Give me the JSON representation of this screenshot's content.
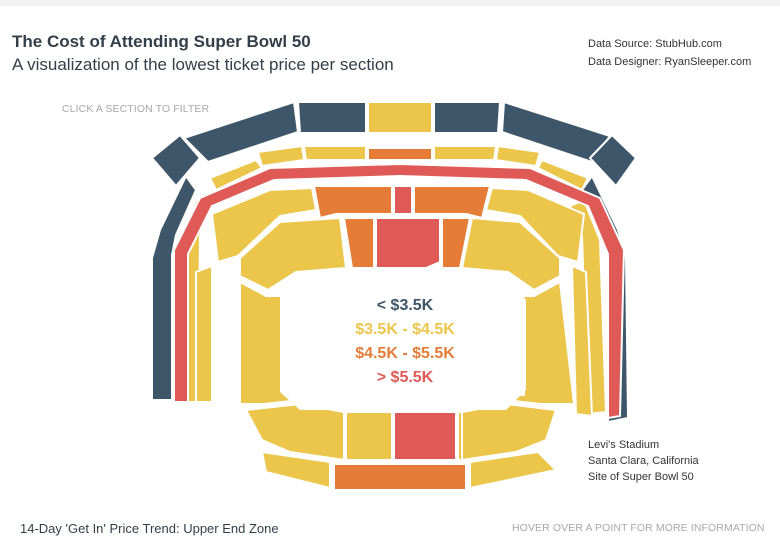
{
  "header": {
    "title": "The Cost of Attending Super Bowl 50",
    "subtitle": "A visualization of the lowest ticket price per section",
    "source": "Data Source: StubHub.com",
    "designer": "Data Designer: RyanSleeper.com"
  },
  "hints": {
    "filter": "CLICK A SECTION TO FILTER",
    "hover": "HOVER OVER A POINT FOR MORE INFORMATION"
  },
  "trend_title": "14-Day 'Get In' Price Trend: Upper End Zone",
  "venue": {
    "line1": "Levi's Stadium",
    "line2": "Santa Clara, California",
    "line3": "Site of Super Bowl 50"
  },
  "colors": {
    "tier1": "#3e5669",
    "tier2": "#ecc54b",
    "tier3": "#e57d38",
    "tier4": "#df5a56"
  },
  "chart_data": {
    "type": "heatmap",
    "legend": [
      {
        "label": "< $3.5K",
        "tier": "tier1"
      },
      {
        "label": "$3.5K - $4.5K",
        "tier": "tier2"
      },
      {
        "label": "$4.5K - $5.5K",
        "tier": "tier3"
      },
      {
        "label": "> $5.5K",
        "tier": "tier4"
      }
    ],
    "sections": [
      {
        "group": "upper-level",
        "name": "upper-left-outer",
        "tier": "tier1"
      },
      {
        "group": "upper-level",
        "name": "upper-left-top",
        "tier": "tier1"
      },
      {
        "group": "upper-level",
        "name": "upper-top-left",
        "tier": "tier1"
      },
      {
        "group": "upper-level",
        "name": "upper-top-center",
        "tier": "tier2"
      },
      {
        "group": "upper-level",
        "name": "upper-top-right",
        "tier": "tier1"
      },
      {
        "group": "upper-level",
        "name": "upper-right-top",
        "tier": "tier1"
      },
      {
        "group": "upper-level",
        "name": "upper-right-outer",
        "tier": "tier1"
      },
      {
        "group": "club-level",
        "name": "club-top-left-1",
        "tier": "tier2"
      },
      {
        "group": "club-level",
        "name": "club-top-left-2",
        "tier": "tier2"
      },
      {
        "group": "club-level",
        "name": "club-top-left-3",
        "tier": "tier2"
      },
      {
        "group": "club-level",
        "name": "club-top-center",
        "tier": "tier3"
      },
      {
        "group": "club-level",
        "name": "club-top-right-3",
        "tier": "tier2"
      },
      {
        "group": "club-level",
        "name": "club-top-right-2",
        "tier": "tier2"
      },
      {
        "group": "club-level",
        "name": "club-top-right-1",
        "tier": "tier2"
      },
      {
        "group": "club-level",
        "name": "club-left-side",
        "tier": "tier2"
      },
      {
        "group": "club-level",
        "name": "club-right-side",
        "tier": "tier2"
      },
      {
        "group": "suite-level",
        "name": "suite-ring",
        "tier": "tier4"
      },
      {
        "group": "mid-level",
        "name": "mid-top-left-corner",
        "tier": "tier2"
      },
      {
        "group": "mid-level",
        "name": "mid-top-left",
        "tier": "tier3"
      },
      {
        "group": "mid-level",
        "name": "mid-top-center",
        "tier": "tier4"
      },
      {
        "group": "mid-level",
        "name": "mid-top-right",
        "tier": "tier3"
      },
      {
        "group": "mid-level",
        "name": "mid-top-right-corner",
        "tier": "tier2"
      },
      {
        "group": "mid-level",
        "name": "mid-left",
        "tier": "tier2"
      },
      {
        "group": "mid-level",
        "name": "mid-right",
        "tier": "tier2"
      },
      {
        "group": "lower-level",
        "name": "lower-top-left",
        "tier": "tier3"
      },
      {
        "group": "lower-level",
        "name": "lower-top-center",
        "tier": "tier4"
      },
      {
        "group": "lower-level",
        "name": "lower-top-right",
        "tier": "tier3"
      },
      {
        "group": "lower-level",
        "name": "lower-top-corner-left",
        "tier": "tier2"
      },
      {
        "group": "lower-level",
        "name": "lower-top-corner-right",
        "tier": "tier2"
      },
      {
        "group": "lower-level",
        "name": "lower-left-sideline",
        "tier": "tier2"
      },
      {
        "group": "lower-level",
        "name": "lower-right-sideline",
        "tier": "tier2"
      },
      {
        "group": "lower-level",
        "name": "lower-bottom-corner-left",
        "tier": "tier2"
      },
      {
        "group": "lower-level",
        "name": "lower-bottom-corner-right",
        "tier": "tier2"
      },
      {
        "group": "lower-level",
        "name": "lower-bottom-left",
        "tier": "tier2"
      },
      {
        "group": "lower-level",
        "name": "lower-bottom-center",
        "tier": "tier4"
      },
      {
        "group": "lower-level",
        "name": "lower-bottom-right",
        "tier": "tier2"
      },
      {
        "group": "lower-level",
        "name": "lower-end-left",
        "tier": "tier2"
      },
      {
        "group": "lower-level",
        "name": "lower-end-center",
        "tier": "tier3"
      },
      {
        "group": "lower-level",
        "name": "lower-end-right",
        "tier": "tier2"
      }
    ]
  }
}
